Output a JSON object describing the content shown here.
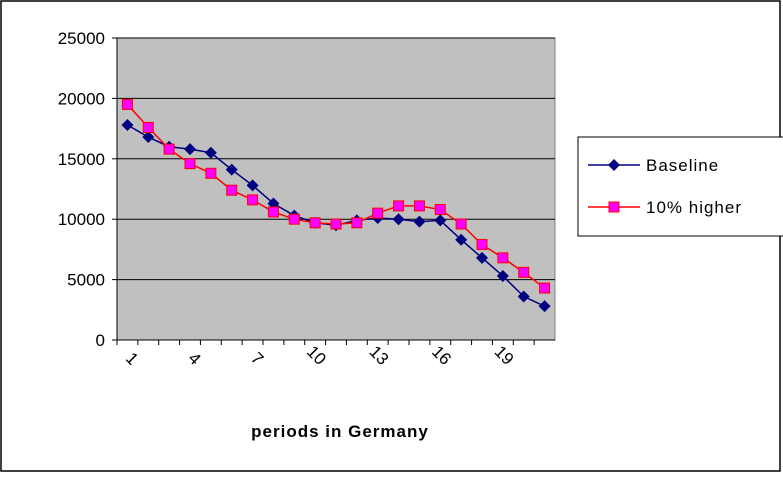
{
  "chart_data": {
    "type": "line",
    "xlabel": "periods in Germany",
    "categories": [
      "1",
      null,
      null,
      "4",
      null,
      null,
      "7",
      null,
      null,
      "10",
      null,
      null,
      "13",
      null,
      null,
      "16",
      null,
      null,
      "19",
      null,
      null
    ],
    "series": [
      {
        "name": "Baseline",
        "color": "#000080",
        "marker": "diamond",
        "values": [
          17800,
          16800,
          16000,
          15800,
          15500,
          14100,
          12800,
          11300,
          10300,
          9700,
          9500,
          9900,
          10100,
          10000,
          9800,
          9900,
          8300,
          6800,
          5300,
          3600,
          2800
        ]
      },
      {
        "name": "10% higher",
        "color": "#ff0000",
        "marker_color": "#ff00ff",
        "marker": "square",
        "values": [
          19500,
          17600,
          15800,
          14600,
          13800,
          12400,
          11600,
          10600,
          10000,
          9700,
          9600,
          9700,
          10500,
          11100,
          11100,
          10800,
          9600,
          7900,
          6800,
          5600,
          4300
        ]
      }
    ],
    "ylim": [
      0,
      25000
    ],
    "yticks": [
      0,
      5000,
      10000,
      15000,
      20000,
      25000
    ],
    "grid": true,
    "legend": "right",
    "plot_background": "#c0c0c0"
  }
}
